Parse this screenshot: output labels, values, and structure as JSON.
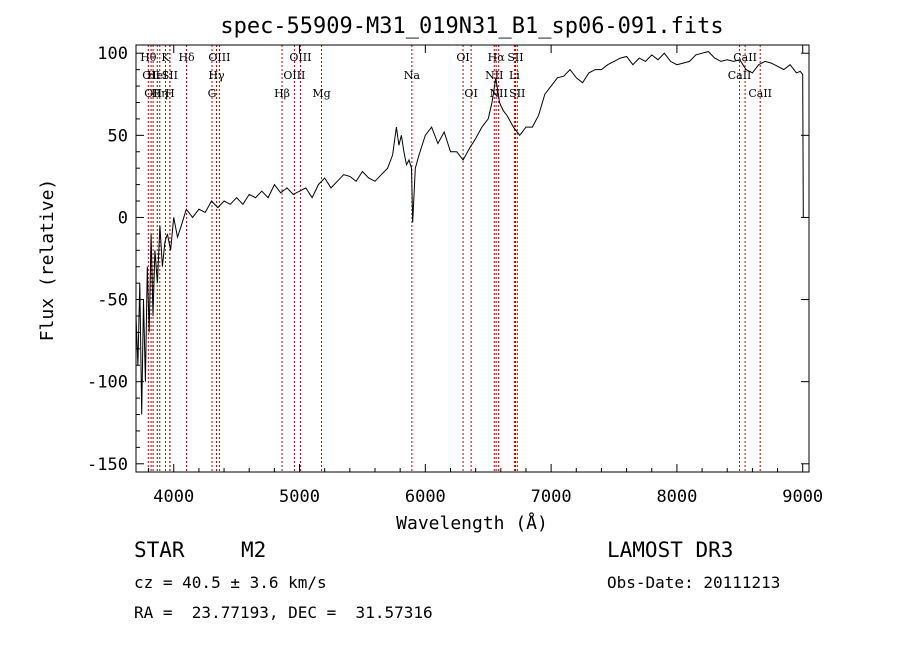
{
  "chart_data": {
    "type": "line",
    "title": "spec-55909-M31_019N31_B1_sp06-091.fits",
    "xlabel": "Wavelength (Å)",
    "ylabel": "Flux (relative)",
    "xlim": [
      3700,
      9050
    ],
    "ylim": [
      -155,
      105
    ],
    "x_ticks": [
      4000,
      5000,
      6000,
      7000,
      8000,
      9000
    ],
    "y_ticks": [
      -150,
      -100,
      -50,
      0,
      50,
      100
    ],
    "series": [
      {
        "name": "spectrum",
        "x": [
          3700,
          3715,
          3730,
          3745,
          3760,
          3775,
          3790,
          3805,
          3820,
          3835,
          3850,
          3870,
          3890,
          3910,
          3930,
          3950,
          3975,
          4000,
          4030,
          4060,
          4100,
          4150,
          4200,
          4250,
          4300,
          4350,
          4400,
          4450,
          4500,
          4550,
          4600,
          4650,
          4700,
          4750,
          4800,
          4850,
          4900,
          4950,
          5000,
          5050,
          5100,
          5150,
          5200,
          5250,
          5300,
          5350,
          5400,
          5450,
          5500,
          5550,
          5600,
          5650,
          5700,
          5740,
          5770,
          5790,
          5810,
          5830,
          5850,
          5870,
          5890,
          5900,
          5920,
          5950,
          6000,
          6050,
          6100,
          6150,
          6200,
          6250,
          6300,
          6350,
          6400,
          6450,
          6500,
          6530,
          6560,
          6590,
          6620,
          6650,
          6700,
          6750,
          6800,
          6850,
          6900,
          6950,
          7000,
          7050,
          7100,
          7150,
          7200,
          7250,
          7300,
          7350,
          7400,
          7450,
          7500,
          7550,
          7600,
          7650,
          7700,
          7750,
          7800,
          7850,
          7900,
          7950,
          8000,
          8050,
          8100,
          8150,
          8200,
          8250,
          8300,
          8350,
          8400,
          8450,
          8500,
          8550,
          8600,
          8650,
          8700,
          8750,
          8800,
          8850,
          8900,
          8950,
          8980,
          9000,
          9005
        ],
        "values": [
          -60,
          -90,
          -40,
          -120,
          -50,
          -100,
          -30,
          -70,
          -10,
          -60,
          -20,
          -40,
          -5,
          -30,
          -15,
          -10,
          -20,
          0,
          -12,
          -5,
          5,
          0,
          5,
          3,
          10,
          6,
          10,
          8,
          12,
          8,
          14,
          12,
          16,
          12,
          20,
          15,
          18,
          14,
          16,
          18,
          12,
          20,
          24,
          18,
          22,
          26,
          25,
          22,
          28,
          24,
          22,
          26,
          30,
          38,
          55,
          44,
          50,
          40,
          32,
          35,
          30,
          -3,
          30,
          38,
          50,
          55,
          45,
          52,
          40,
          40,
          35,
          42,
          48,
          55,
          60,
          70,
          85,
          70,
          65,
          62,
          55,
          50,
          55,
          55,
          62,
          75,
          80,
          85,
          86,
          90,
          85,
          82,
          88,
          90,
          90,
          93,
          95,
          97,
          98,
          93,
          97,
          95,
          99,
          96,
          100,
          95,
          93,
          94,
          95,
          99,
          100,
          101,
          97,
          95,
          96,
          95,
          96,
          90,
          88,
          93,
          95,
          94,
          92,
          90,
          93,
          88,
          89,
          87,
          0
        ]
      }
    ],
    "lines": [
      {
        "x": 3798,
        "label": "Hθ",
        "row": 0
      },
      {
        "x": 3820,
        "label": "OII",
        "row": 1
      },
      {
        "x": 3836,
        "label": "OII",
        "row": 2
      },
      {
        "x": 3869,
        "label": "HeI",
        "row": 1
      },
      {
        "x": 3889,
        "label": "Hη",
        "row": 2
      },
      {
        "x": 3934,
        "label": "K",
        "row": 0
      },
      {
        "x": 3969,
        "label": "SII",
        "row": 1
      },
      {
        "x": 3970,
        "label": "H",
        "row": 2
      },
      {
        "x": 4102,
        "label": "Hδ",
        "row": 0
      },
      {
        "x": 4304,
        "label": "G",
        "row": 2
      },
      {
        "x": 4340,
        "label": "Hγ",
        "row": 1
      },
      {
        "x": 4363,
        "label": "OIII",
        "row": 0
      },
      {
        "x": 4861,
        "label": "Hβ",
        "row": 2
      },
      {
        "x": 4959,
        "label": "OIII",
        "row": 1
      },
      {
        "x": 5007,
        "label": "OIII",
        "row": 0
      },
      {
        "x": 5175,
        "label": "Mg",
        "row": 2
      },
      {
        "x": 5893,
        "label": "Na",
        "row": 1
      },
      {
        "x": 6300,
        "label": "OI",
        "row": 0
      },
      {
        "x": 6364,
        "label": "OI",
        "row": 2
      },
      {
        "x": 6548,
        "label": "NII",
        "row": 1
      },
      {
        "x": 6563,
        "label": "Hα",
        "row": 0
      },
      {
        "x": 6583,
        "label": "NII",
        "row": 2
      },
      {
        "x": 6708,
        "label": "Li",
        "row": 1
      },
      {
        "x": 6717,
        "label": "SII",
        "row": 0
      },
      {
        "x": 6731,
        "label": "SII",
        "row": 2
      },
      {
        "x": 8498,
        "label": "CaII",
        "row": 1
      },
      {
        "x": 8542,
        "label": "CaII",
        "row": 0
      },
      {
        "x": 8662,
        "label": "CaII",
        "row": 2
      }
    ]
  },
  "info": {
    "class": "STAR",
    "subclass": "M2",
    "survey": "LAMOST DR3",
    "cz": "cz = 40.5 ± 3.6 km/s",
    "obs_date": "Obs-Date: 20111213",
    "radec": "RA =  23.77193, DEC =  31.57316"
  },
  "colors": {
    "line": "#b00000",
    "spectrum": "#000000"
  }
}
